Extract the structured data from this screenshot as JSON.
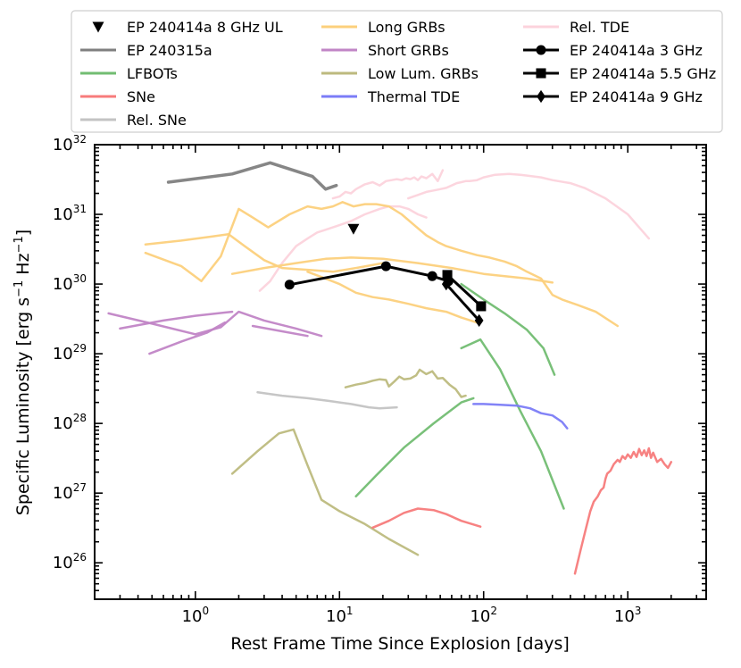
{
  "chart_data": {
    "type": "line",
    "xlabel": "Rest Frame Time Since Explosion [days]",
    "ylabel_main": "Specific Luminosity [erg s",
    "ylabel_sup1": "−1",
    "ylabel_mid": " Hz",
    "ylabel_sup2": "−1",
    "ylabel_end": "]",
    "xscale": "log",
    "yscale": "log",
    "xlim": [
      0.2,
      3500
    ],
    "ylim": [
      3e+25,
      1e+32
    ],
    "x_ticks": [
      {
        "value": 1,
        "base": "10",
        "exp": "0"
      },
      {
        "value": 10,
        "base": "10",
        "exp": "1"
      },
      {
        "value": 100,
        "base": "10",
        "exp": "2"
      },
      {
        "value": 1000,
        "base": "10",
        "exp": "3"
      }
    ],
    "y_ticks": [
      {
        "value": 1e+26,
        "base": "10",
        "exp": "26"
      },
      {
        "value": 1e+27,
        "base": "10",
        "exp": "27"
      },
      {
        "value": 1e+28,
        "base": "10",
        "exp": "28"
      },
      {
        "value": 1e+29,
        "base": "10",
        "exp": "29"
      },
      {
        "value": 1e+30,
        "base": "10",
        "exp": "30"
      },
      {
        "value": 1e+31,
        "base": "10",
        "exp": "31"
      },
      {
        "value": 1e+32,
        "base": "10",
        "exp": "32"
      }
    ],
    "legend": [
      {
        "label": "EP 240414a 8 GHz UL",
        "color": "#000000",
        "kind": "marker",
        "marker": "triangle-down"
      },
      {
        "label": "EP 240315a",
        "color": "#7f7f7f",
        "kind": "line"
      },
      {
        "label": "LFBOTs",
        "color": "#72bd72",
        "kind": "line"
      },
      {
        "label": "SNe",
        "color": "#f77b7b",
        "kind": "line"
      },
      {
        "label": "Rel. SNe",
        "color": "#c3c3c3",
        "kind": "line"
      },
      {
        "label": "Long GRBs",
        "color": "#fcd07c",
        "kind": "line"
      },
      {
        "label": "Short GRBs",
        "color": "#c185c6",
        "kind": "line"
      },
      {
        "label": "Low Lum. GRBs",
        "color": "#bdba7e",
        "kind": "line"
      },
      {
        "label": "Thermal TDE",
        "color": "#7b7cf7",
        "kind": "line"
      },
      {
        "label": "Rel. TDE",
        "color": "#fcd3dc",
        "kind": "line"
      },
      {
        "label": "EP 240414a 3 GHz",
        "color": "#000000",
        "kind": "line-marker",
        "marker": "circle"
      },
      {
        "label": "EP 240414a 5.5 GHz",
        "color": "#000000",
        "kind": "line-marker",
        "marker": "square"
      },
      {
        "label": "EP 240414a 9 GHz",
        "color": "#000000",
        "kind": "line-marker",
        "marker": "diamond"
      }
    ],
    "series": [
      {
        "name": "Rel. TDE",
        "color": "#fcd3dc",
        "width": 2.5,
        "x": [
          2.8,
          3.3,
          4.0,
          5.0,
          6.0,
          7.0,
          8.0,
          10,
          12,
          15,
          19,
          22,
          26,
          30,
          35,
          40
        ],
        "y": [
          8e+29,
          1.1e+30,
          2e+30,
          3.5e+30,
          4.5e+30,
          5.5e+30,
          6e+30,
          7e+30,
          8e+30,
          1e+31,
          1.2e+31,
          1.3e+31,
          1.3e+31,
          1.2e+31,
          1e+31,
          9e+30
        ]
      },
      {
        "name": "Rel. TDE",
        "color": "#fcd3dc",
        "width": 2.5,
        "x": [
          30,
          35,
          40,
          45,
          50,
          55,
          60,
          65,
          70,
          75,
          80,
          90,
          100,
          120,
          150,
          180,
          200,
          250,
          300,
          400,
          500,
          700,
          1000,
          1400
        ],
        "y": [
          1.7e+31,
          1.9e+31,
          2.1e+31,
          2.2e+31,
          2.3e+31,
          2.4e+31,
          2.6e+31,
          2.8e+31,
          2.9e+31,
          3e+31,
          3e+31,
          3.1e+31,
          3.4e+31,
          3.7e+31,
          3.8e+31,
          3.7e+31,
          3.6e+31,
          3.4e+31,
          3.1e+31,
          2.8e+31,
          2.4e+31,
          1.7e+31,
          1e+31,
          4.5e+30
        ]
      },
      {
        "name": "Rel. TDE",
        "color": "#fcd3dc",
        "width": 2.5,
        "x": [
          9,
          10,
          11,
          12,
          13,
          14,
          15,
          17,
          19,
          21,
          23,
          25,
          27,
          29,
          31,
          33,
          35,
          37,
          40,
          44,
          48,
          52
        ],
        "y": [
          1.7e+31,
          1.8e+31,
          2.1e+31,
          2e+31,
          2.3e+31,
          2.5e+31,
          2.7e+31,
          2.9e+31,
          2.6e+31,
          3e+31,
          3.1e+31,
          3.2e+31,
          3.1e+31,
          3.3e+31,
          3.2e+31,
          3.4e+31,
          3.1e+31,
          3.5e+31,
          3.3e+31,
          3.8e+31,
          3e+31,
          4.3e+31
        ]
      },
      {
        "name": "Long GRBs",
        "color": "#fcd07c",
        "width": 2.5,
        "x": [
          0.45,
          0.8,
          1.1,
          1.5,
          2.0,
          2.5,
          3.2,
          4.5,
          6.0,
          7.5,
          9.0,
          10.5,
          12.5,
          15,
          18,
          22,
          27,
          33,
          40,
          48,
          55,
          70,
          90,
          110,
          140,
          170,
          200,
          250,
          300,
          350,
          450,
          600,
          850
        ],
        "y": [
          2.8e+30,
          1.8e+30,
          1.1e+30,
          2.5e+30,
          1.2e+31,
          9e+30,
          6.5e+30,
          1e+31,
          1.3e+31,
          1.2e+31,
          1.3e+31,
          1.5e+31,
          1.3e+31,
          1.4e+31,
          1.4e+31,
          1.3e+31,
          1e+31,
          7e+30,
          5e+30,
          4e+30,
          3.5e+30,
          3e+30,
          2.6e+30,
          2.4e+30,
          2.1e+30,
          1.8e+30,
          1.5e+30,
          1.2e+30,
          7e+29,
          6e+29,
          5e+29,
          4e+29,
          2.5e+29
        ]
      },
      {
        "name": "Long GRBs",
        "color": "#fcd07c",
        "width": 2.5,
        "x": [
          0.45,
          0.8,
          1.3,
          1.7,
          2.2,
          3.0,
          4.0,
          6.0,
          9.0,
          13,
          20
        ],
        "y": [
          3.7e+30,
          4.2e+30,
          4.8e+30,
          5.2e+30,
          3.5e+30,
          2.2e+30,
          1.7e+30,
          1.6e+30,
          1.5e+30,
          1.7e+30,
          2e+30
        ]
      },
      {
        "name": "Long GRBs",
        "color": "#fcd07c",
        "width": 2.5,
        "x": [
          1.8,
          3.0,
          5.0,
          8.0,
          12,
          20,
          35,
          60,
          100,
          200,
          300
        ],
        "y": [
          1.4e+30,
          1.7e+30,
          2e+30,
          2.3e+30,
          2.4e+30,
          2.3e+30,
          2e+30,
          1.7e+30,
          1.4e+30,
          1.2e+30,
          1.05e+30
        ]
      },
      {
        "name": "Long GRBs",
        "color": "#fcd07c",
        "width": 2.5,
        "x": [
          6,
          8,
          10,
          13,
          17,
          22,
          30,
          40,
          55,
          70,
          90
        ],
        "y": [
          1.5e+30,
          1.2e+30,
          1e+30,
          7.5e+29,
          6.5e+29,
          6e+29,
          5.2e+29,
          4.5e+29,
          4e+29,
          3.3e+29,
          2.8e+29
        ]
      },
      {
        "name": "Short GRBs",
        "color": "#c185c6",
        "width": 2.5,
        "x": [
          0.25,
          0.5,
          1.0,
          1.5,
          2.0,
          3.0,
          5.0,
          7.5
        ],
        "y": [
          3.8e+29,
          2.7e+29,
          1.9e+29,
          2.4e+29,
          4e+29,
          3e+29,
          2.3e+29,
          1.8e+29
        ]
      },
      {
        "name": "Short GRBs",
        "color": "#c185c6",
        "width": 2.5,
        "x": [
          0.3,
          0.6,
          1.0,
          1.8
        ],
        "y": [
          2.3e+29,
          3e+29,
          3.5e+29,
          4e+29
        ]
      },
      {
        "name": "Short GRBs",
        "color": "#c185c6",
        "width": 2.5,
        "x": [
          0.48,
          0.8,
          1.2,
          1.6
        ],
        "y": [
          1e+29,
          1.5e+29,
          2e+29,
          2.8e+29
        ]
      },
      {
        "name": "Short GRBs",
        "color": "#c185c6",
        "width": 2.5,
        "x": [
          2.5,
          4.0,
          6.0
        ],
        "y": [
          2.5e+29,
          2.1e+29,
          1.8e+29
        ]
      },
      {
        "name": "Low Lum. GRBs",
        "color": "#bdba7e",
        "width": 2.5,
        "x": [
          11,
          13,
          15,
          17,
          19,
          21,
          22,
          24,
          26,
          28,
          31,
          34,
          36,
          40,
          44,
          48,
          52,
          58,
          64,
          70,
          75
        ],
        "y": [
          3.3e+28,
          3.6e+28,
          3.8e+28,
          4.1e+28,
          4.3e+28,
          4.2e+28,
          3.4e+28,
          4e+28,
          4.7e+28,
          4.3e+28,
          4.4e+28,
          4.9e+28,
          5.9e+28,
          5.1e+28,
          5.6e+28,
          4.4e+28,
          4.5e+28,
          3.6e+28,
          3.1e+28,
          2.4e+28,
          2.5e+28
        ]
      },
      {
        "name": "Low Lum. GRBs",
        "color": "#bdba7e",
        "width": 2.5,
        "x": [
          1.8,
          2.7,
          3.8,
          4.8,
          6.0,
          7.5,
          10,
          15,
          22,
          35
        ],
        "y": [
          1.9e+27,
          4e+27,
          7.2e+27,
          8.2e+27,
          2.5e+27,
          8e+26,
          5.5e+26,
          3.6e+26,
          2.2e+26,
          1.3e+26
        ]
      },
      {
        "name": "Rel. SNe",
        "color": "#c3c3c3",
        "width": 2.5,
        "x": [
          2.7,
          4.0,
          6.0,
          8.5,
          12,
          16,
          19,
          25
        ],
        "y": [
          2.8e+28,
          2.5e+28,
          2.3e+28,
          2.1e+28,
          1.9e+28,
          1.7e+28,
          1.65e+28,
          1.7e+28
        ]
      },
      {
        "name": "LFBOTs",
        "color": "#72bd72",
        "width": 2.5,
        "x": [
          13,
          18,
          28,
          45,
          70,
          85
        ],
        "y": [
          9e+26,
          1.8e+27,
          4.5e+27,
          1e+28,
          2e+28,
          2.3e+28
        ]
      },
      {
        "name": "LFBOTs",
        "color": "#72bd72",
        "width": 2.5,
        "x": [
          70,
          95,
          130,
          180,
          250,
          360
        ],
        "y": [
          1.2e+29,
          1.6e+29,
          6e+28,
          1.5e+28,
          4e+27,
          6e+26
        ]
      },
      {
        "name": "LFBOTs",
        "color": "#72bd72",
        "width": 2.5,
        "x": [
          70,
          100,
          140,
          200,
          260,
          310
        ],
        "y": [
          1e+30,
          6e+29,
          3.8e+29,
          2.2e+29,
          1.2e+29,
          5e+28
        ]
      },
      {
        "name": "Thermal TDE",
        "color": "#7b7cf7",
        "width": 2.5,
        "x": [
          85,
          100,
          130,
          170,
          210,
          250,
          300,
          350,
          380
        ],
        "y": [
          1.9e+28,
          1.9e+28,
          1.85e+28,
          1.8e+28,
          1.65e+28,
          1.4e+28,
          1.3e+28,
          1.05e+28,
          8.5e+27
        ]
      },
      {
        "name": "SNe",
        "color": "#f77b7b",
        "width": 2.5,
        "x": [
          17,
          22,
          28,
          35,
          45,
          55,
          70,
          95
        ],
        "y": [
          3.2e+26,
          4e+26,
          5.2e+26,
          6e+26,
          5.7e+26,
          5e+26,
          4e+26,
          3.3e+26
        ]
      },
      {
        "name": "SNe",
        "color": "#f77b7b",
        "width": 2.5,
        "x": [
          430,
          470,
          510,
          550,
          580,
          620,
          650,
          680,
          700,
          720,
          760,
          800,
          850,
          880,
          920,
          960,
          1000,
          1050,
          1100,
          1150,
          1200,
          1250,
          1300,
          1350,
          1400,
          1450,
          1500,
          1600,
          1700,
          1800,
          1900,
          2000
        ],
        "y": [
          7e+25,
          1.5e+26,
          3e+26,
          5.5e+26,
          7.5e+26,
          9e+26,
          1.1e+27,
          1.2e+27,
          1.6e+27,
          1.9e+27,
          2.1e+27,
          2.6e+27,
          3e+27,
          2.8e+27,
          3.4e+27,
          3.1e+27,
          3.6e+27,
          3.2e+27,
          3.9e+27,
          3.3e+27,
          4.3e+27,
          3.5e+27,
          4.1e+27,
          3.4e+27,
          4.4e+27,
          3.2e+27,
          3.8e+27,
          2.8e+27,
          3.1e+27,
          2.6e+27,
          2.3e+27,
          2.8e+27
        ]
      },
      {
        "name": "EP 240315a",
        "color": "#7f7f7f",
        "width": 3.5,
        "x": [
          0.65,
          1.8,
          3.3,
          6.5,
          8.0,
          9.5
        ],
        "y": [
          2.9e+31,
          3.8e+31,
          5.5e+31,
          3.5e+31,
          2.3e+31,
          2.6e+31
        ]
      }
    ],
    "ep_series": [
      {
        "name": "EP 240414a 3 GHz",
        "marker": "circle",
        "x": [
          4.5,
          21,
          44,
          57
        ],
        "y": [
          9.8e+29,
          1.8e+30,
          1.3e+30,
          1.1e+30
        ]
      },
      {
        "name": "EP 240414a 5.5 GHz",
        "marker": "square",
        "x": [
          56,
          96
        ],
        "y": [
          1.35e+30,
          4.8e+29
        ]
      },
      {
        "name": "EP 240414a 9 GHz",
        "marker": "diamond",
        "x": [
          55,
          93
        ],
        "y": [
          1e+30,
          3e+29
        ]
      }
    ],
    "upper_limit": {
      "name": "EP 240414a 8 GHz UL",
      "marker": "triangle-down",
      "x": 12.5,
      "y": 6.2e+30
    }
  }
}
